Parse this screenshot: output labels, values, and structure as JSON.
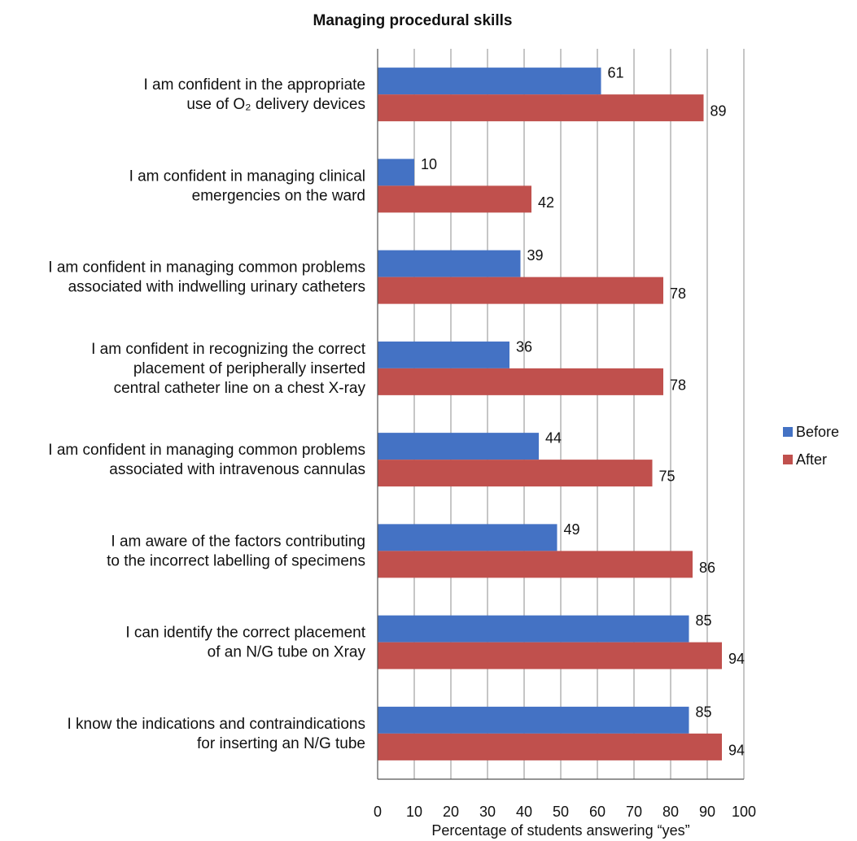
{
  "chart_data": {
    "type": "bar",
    "orientation": "horizontal",
    "title": "Managing procedural skills",
    "xlabel": "Percentage of students answering “yes”",
    "ylabel": "",
    "xlim": [
      0,
      100
    ],
    "xticks": [
      "0",
      "10",
      "20",
      "30",
      "40",
      "50",
      "60",
      "70",
      "80",
      "90",
      "100"
    ],
    "grid": true,
    "legend_position": "right",
    "categories": [
      [
        "I am confident in the appropriate",
        "use of O₂ delivery devices"
      ],
      [
        "I am confident in managing clinical",
        "emergencies on the ward"
      ],
      [
        "I am confident in managing common problems",
        "associated with indwelling urinary catheters"
      ],
      [
        "I am confident in recognizing the correct",
        "placement of peripherally inserted",
        "central catheter line on a chest X-ray"
      ],
      [
        "I am confident in managing common problems",
        "associated with intravenous cannulas"
      ],
      [
        "I am aware of the factors contributing",
        "to the incorrect labelling of specimens"
      ],
      [
        "I can identify the correct placement",
        "of an N/G tube on Xray"
      ],
      [
        "I know the indications and contraindications",
        "for inserting an N/G tube"
      ]
    ],
    "series": [
      {
        "name": "Before",
        "color": "#4472C4",
        "values": [
          61,
          10,
          39,
          36,
          44,
          49,
          85,
          85
        ]
      },
      {
        "name": "After",
        "color": "#C0504D",
        "values": [
          89,
          42,
          78,
          78,
          75,
          86,
          94,
          94
        ]
      }
    ]
  }
}
